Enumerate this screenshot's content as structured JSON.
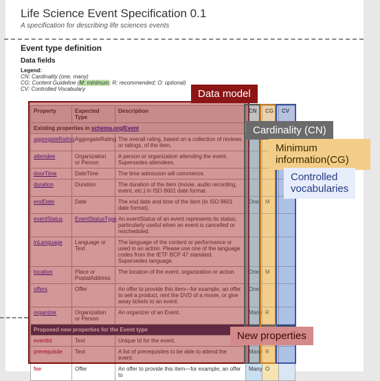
{
  "doc": {
    "title": "Life Science Event Specification 0.1",
    "subtitle": "A specification for describing life sciences events",
    "section": "Event type definition",
    "datafields": "Data fields",
    "legend_head": "Legend:",
    "legend_cn": "CN: Cardinality (one, many)",
    "legend_cg_pre": "CG: Content Guideline (",
    "legend_cg_hl": "M: minimum",
    "legend_cg_post": "; R: recommended; O: optional)",
    "legend_cv": "CV: Controlled Vocabulary"
  },
  "tbl": {
    "h1": "Property",
    "h2": "Expected Type",
    "h3": "Description",
    "h4": "CN",
    "h5": "CG",
    "h6": "CV",
    "sec1_pre": "Existing properties in ",
    "sec1_link": "schema.org/Event",
    "rows": [
      {
        "p": "aggregateRating",
        "t": "AggregateRating",
        "d": "The overall rating, based on a collection of reviews or ratings, of the item.",
        "cn": "",
        "cg": "",
        "cv": ""
      },
      {
        "p": "attendee",
        "t": "Organization or Person",
        "d": "A person or organization attending the event. Supersedes attendees.",
        "cn": "",
        "cg": "",
        "cv": ""
      },
      {
        "p": "doorTime",
        "t": "DateTime",
        "d": "The time admission will commence.",
        "cn": "",
        "cg": "",
        "cv": ""
      },
      {
        "p": "duration",
        "t": "Duration",
        "d": "The duration of the item (movie, audio recording, event, etc.) in ISO 8601 date format.",
        "cn": "",
        "cg": "",
        "cv": ""
      },
      {
        "p": "endDate",
        "t": "Date",
        "d": "The end date and time of the item (in ISO 8601 date format).",
        "cn": "One",
        "cg": "M",
        "cv": ""
      },
      {
        "p": "eventStatus",
        "t": "EventStatusType",
        "d": "An eventStatus of an event represents its status; particularly useful when an event is cancelled or rescheduled.",
        "cn": "",
        "cg": "",
        "cv": "",
        "tlink": true
      },
      {
        "p": "inLanguage",
        "t": "Language or Text",
        "d": "The language of the content or performance or used in an action. Please use one of the language codes from the IETF BCP 47 standard. Supersedes language.",
        "cn": "",
        "cg": "",
        "cv": ""
      },
      {
        "p": "location",
        "t": "Place or PostalAddress",
        "d": "The location of the event, organization or action.",
        "cn": "One",
        "cg": "M",
        "cv": ""
      },
      {
        "p": "offers",
        "t": "Offer",
        "d": "An offer to provide this item—for example, an offer to sell a product, rent the DVD of a movie, or give away tickets to an event.",
        "cn": "One",
        "cg": "",
        "cv": ""
      },
      {
        "p": "organizer",
        "t": "Organization or Person",
        "d": "An organizer of an Event.",
        "cn": "Many",
        "cg": "R",
        "cv": ""
      }
    ],
    "sec2": "Proposed new properties for the Event type",
    "rows2": [
      {
        "p": "eventId",
        "t": "Text",
        "d": "Unique Id for the event.",
        "cn": "",
        "cg": "",
        "cv": ""
      },
      {
        "p": "prerequisite",
        "t": "Text",
        "d": "A list of prerequisites to be able to attend the event.",
        "cn": "Many",
        "cg": "R",
        "cv": ""
      },
      {
        "p": "fee",
        "t": "Offer",
        "d": "An offer to provide this item—for example, an offer to",
        "cn": "Many",
        "cg": "O",
        "cv": ""
      }
    ]
  },
  "call": {
    "data_model": "Data model",
    "cn": "Cardinality (CN)",
    "cg1": "Minimum",
    "cg2": "information(CG)",
    "cv1": "Controlled",
    "cv2": "vocabularies",
    "newprops": "New properties"
  }
}
